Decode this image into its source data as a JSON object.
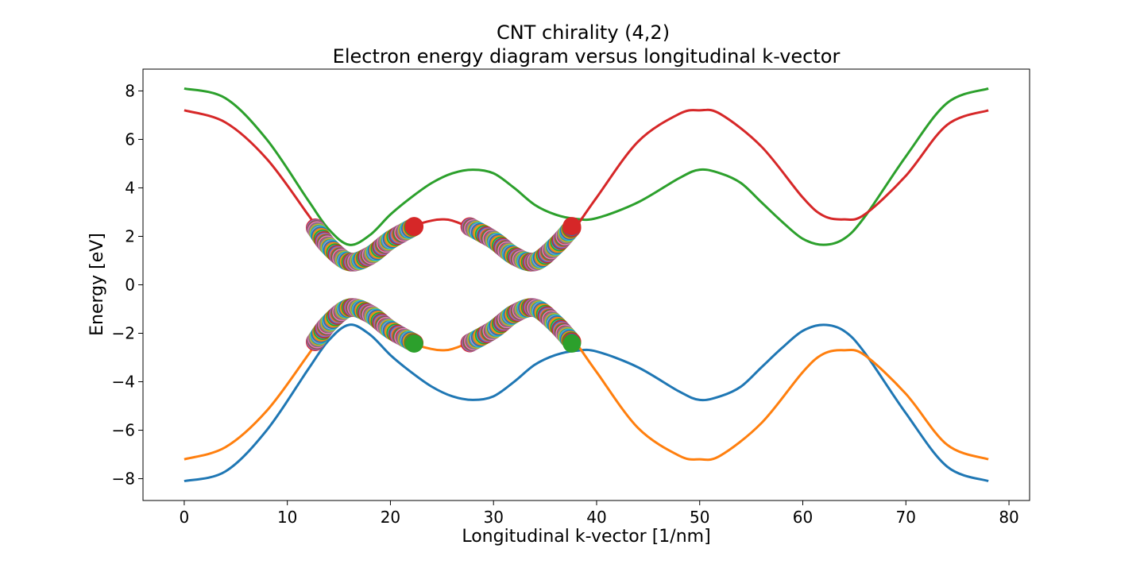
{
  "chart_data": {
    "type": "line",
    "title_line1": "CNT chirality (4,2)",
    "title_line2": "Electron energy diagram versus longitudinal k-vector",
    "xlabel": "Longitudinal k-vector [1/nm]",
    "ylabel": "Energy [eV]",
    "xlim": [
      -4,
      82
    ],
    "ylim": [
      -8.9,
      8.9
    ],
    "xticks": [
      0,
      10,
      20,
      30,
      40,
      50,
      60,
      70,
      80
    ],
    "xtick_labels": [
      "0",
      "10",
      "20",
      "30",
      "40",
      "50",
      "60",
      "70",
      "80"
    ],
    "yticks": [
      -8,
      -6,
      -4,
      -2,
      0,
      2,
      4,
      6,
      8
    ],
    "ytick_labels": [
      "−8",
      "−6",
      "−4",
      "−2",
      "0",
      "2",
      "4",
      "6",
      "8"
    ],
    "grid": false,
    "series": [
      {
        "color": "#1f77b4",
        "x": [
          0,
          4,
          8,
          12,
          14,
          16,
          18,
          20,
          22,
          24,
          26,
          28,
          30,
          32,
          34,
          36,
          38,
          40,
          44,
          48,
          50,
          52,
          54,
          56,
          58,
          60,
          62,
          64,
          66,
          70,
          74,
          78
        ],
        "y": [
          -8.1,
          -7.7,
          -6.0,
          -3.5,
          -2.3,
          -1.65,
          -2.05,
          -2.9,
          -3.6,
          -4.2,
          -4.6,
          -4.75,
          -4.6,
          -4.0,
          -3.3,
          -2.9,
          -2.72,
          -2.75,
          -3.4,
          -4.4,
          -4.75,
          -4.6,
          -4.2,
          -3.4,
          -2.6,
          -1.9,
          -1.65,
          -1.9,
          -2.8,
          -5.3,
          -7.5,
          -8.1
        ]
      },
      {
        "color": "#ff7f0e",
        "x": [
          0,
          4,
          8,
          12,
          14,
          16,
          18,
          20,
          22,
          24,
          25,
          26,
          28,
          30,
          32,
          34,
          36,
          38,
          40,
          44,
          48,
          50,
          52,
          56,
          60,
          62,
          64,
          66,
          70,
          74,
          78
        ],
        "y": [
          -7.2,
          -6.7,
          -5.2,
          -2.9,
          -1.7,
          -1.05,
          -1.35,
          -1.9,
          -2.4,
          -2.65,
          -2.7,
          -2.65,
          -2.3,
          -1.8,
          -1.3,
          -0.95,
          -1.35,
          -2.4,
          -3.6,
          -5.9,
          -7.05,
          -7.2,
          -7.05,
          -5.7,
          -3.6,
          -2.85,
          -2.7,
          -2.9,
          -4.5,
          -6.6,
          -7.2
        ]
      },
      {
        "color": "#2ca02c",
        "x": [
          0,
          4,
          8,
          12,
          14,
          16,
          18,
          20,
          22,
          24,
          26,
          28,
          30,
          32,
          34,
          36,
          38,
          40,
          44,
          48,
          50,
          52,
          54,
          56,
          58,
          60,
          62,
          64,
          66,
          70,
          74,
          78
        ],
        "y": [
          8.1,
          7.7,
          6.0,
          3.5,
          2.3,
          1.65,
          2.05,
          2.9,
          3.6,
          4.2,
          4.6,
          4.75,
          4.6,
          4.0,
          3.3,
          2.9,
          2.72,
          2.75,
          3.4,
          4.4,
          4.75,
          4.6,
          4.2,
          3.4,
          2.6,
          1.9,
          1.65,
          1.9,
          2.8,
          5.3,
          7.5,
          8.1
        ]
      },
      {
        "color": "#d62728",
        "x": [
          0,
          4,
          8,
          12,
          14,
          16,
          18,
          20,
          22,
          24,
          25,
          26,
          28,
          30,
          32,
          34,
          36,
          38,
          40,
          44,
          48,
          50,
          52,
          56,
          60,
          62,
          64,
          66,
          70,
          74,
          78
        ],
        "y": [
          7.2,
          6.7,
          5.2,
          2.9,
          1.7,
          1.05,
          1.35,
          1.9,
          2.4,
          2.65,
          2.7,
          2.65,
          2.3,
          1.8,
          1.3,
          0.95,
          1.35,
          2.4,
          3.6,
          5.9,
          7.05,
          7.2,
          7.05,
          5.7,
          3.6,
          2.85,
          2.7,
          2.9,
          4.5,
          6.6,
          7.2
        ]
      }
    ],
    "marker_bands": [
      {
        "band": "conduction",
        "x": [
          12.7,
          14,
          16,
          18,
          20,
          22.3
        ],
        "y": [
          2.35,
          1.6,
          0.95,
          1.2,
          1.85,
          2.4
        ]
      },
      {
        "band": "conduction",
        "x": [
          27.7,
          30,
          32,
          34,
          36,
          37.6
        ],
        "y": [
          2.4,
          1.85,
          1.2,
          0.95,
          1.6,
          2.35
        ]
      },
      {
        "band": "valence",
        "x": [
          12.7,
          14,
          16,
          18,
          20,
          22.3
        ],
        "y": [
          -2.35,
          -1.6,
          -0.95,
          -1.2,
          -1.85,
          -2.4
        ]
      },
      {
        "band": "valence",
        "x": [
          27.7,
          30,
          32,
          34,
          36,
          37.6
        ],
        "y": [
          -2.4,
          -1.85,
          -1.2,
          -0.95,
          -1.6,
          -2.35
        ]
      }
    ],
    "marker_colors": [
      "#1f77b4",
      "#ff7f0e",
      "#2ca02c",
      "#d62728",
      "#9467bd",
      "#8c564b",
      "#e377c2",
      "#7f7f7f",
      "#bcbd22",
      "#17becf"
    ],
    "highlight_points": [
      {
        "x": 22.3,
        "y": 2.42,
        "color": "#d62728"
      },
      {
        "x": 37.6,
        "y": 2.42,
        "color": "#d62728"
      },
      {
        "x": 22.3,
        "y": -2.42,
        "color": "#2ca02c"
      },
      {
        "x": 37.6,
        "y": -2.42,
        "color": "#2ca02c"
      }
    ]
  }
}
